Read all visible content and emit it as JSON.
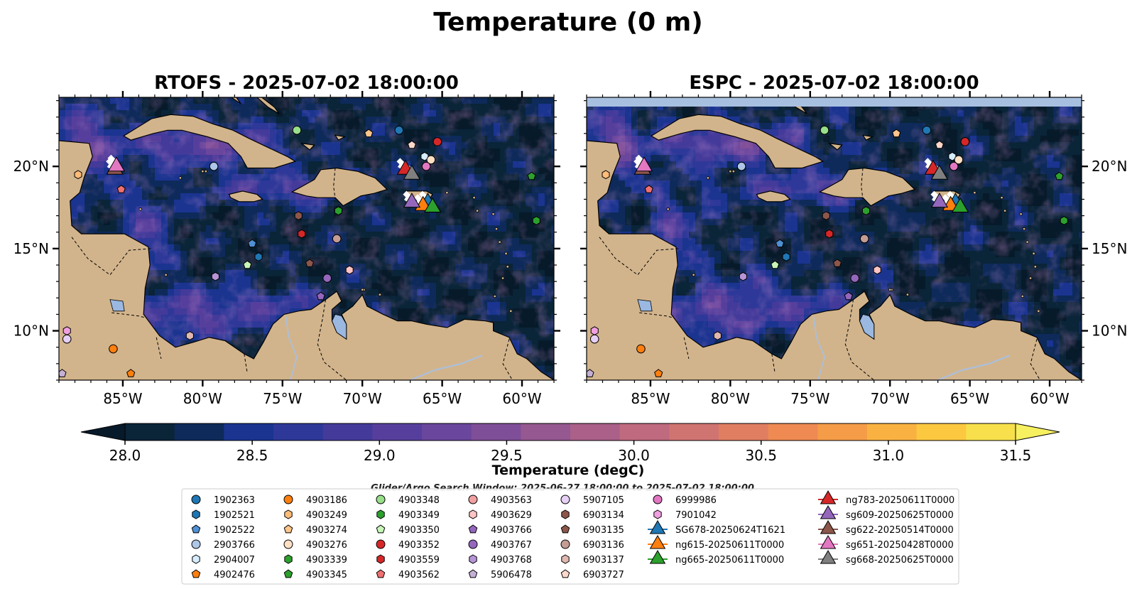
{
  "figure": {
    "suptitle": "Temperature (0 m)",
    "search_window": "Glider/Argo Search Window: 2025-06-27 18:00:00 to 2025-07-02 18:00:00"
  },
  "chart_data": [
    {
      "type": "heatmap",
      "title": "RTOFS - 2025-07-02 18:00:00",
      "xlim": [
        -89,
        -58
      ],
      "ylim": [
        7,
        24.2
      ],
      "xticks": [
        -85,
        -80,
        -75,
        -70,
        -65,
        -60
      ],
      "xtick_labels": [
        "85°W",
        "80°W",
        "75°W",
        "70°W",
        "65°W",
        "60°W"
      ],
      "yticks": [
        10,
        15,
        20
      ],
      "ytick_labels": [
        "10°N",
        "15°N",
        "20°N"
      ]
    },
    {
      "type": "heatmap",
      "title": "ESPC - 2025-07-02 18:00:00",
      "xlim": [
        -89,
        -58
      ],
      "ylim": [
        7,
        24.2
      ],
      "xticks": [
        -85,
        -80,
        -75,
        -70,
        -65,
        -60
      ],
      "xtick_labels": [
        "85°W",
        "80°W",
        "75°W",
        "70°W",
        "65°W",
        "60°W"
      ],
      "yticks": [
        10,
        15,
        20
      ],
      "ytick_labels": [
        "10°N",
        "15°N",
        "20°N"
      ]
    }
  ],
  "colorbar": {
    "label": "Temperature (degC)",
    "min": 28.0,
    "max": 31.5,
    "ticks": [
      28.0,
      28.5,
      29.0,
      29.5,
      30.0,
      30.5,
      31.0,
      31.5
    ],
    "tick_labels": [
      "28.0",
      "28.5",
      "29.0",
      "29.5",
      "30.0",
      "30.5",
      "31.0",
      "31.5"
    ],
    "colors": [
      "#0a2438",
      "#0e2a5a",
      "#1a3490",
      "#2e3898",
      "#433a9a",
      "#563f9c",
      "#6a469c",
      "#7f4e98",
      "#955890",
      "#aa6088",
      "#bf6a7e",
      "#d07472",
      "#e07e62",
      "#ee8a52",
      "#f59c48",
      "#f9b242",
      "#fbc840",
      "#f7e04c"
    ],
    "under_color": "#071a2a",
    "over_color": "#f7f060"
  },
  "colors": {
    "land": "#d2b48c",
    "ocean_mask": "#a8c0e0",
    "lakes": "#9ab8e0"
  },
  "argo_floats": [
    {
      "id": "1902363",
      "lon": -67.7,
      "lat": 22.2,
      "color": "#1f77b4",
      "marker": "circle"
    },
    {
      "id": "1902521",
      "lon": -76.5,
      "lat": 14.5,
      "color": "#1f77b4",
      "marker": "hexagon"
    },
    {
      "id": "1902522",
      "lon": -76.9,
      "lat": 15.3,
      "color": "#4f8fd4",
      "marker": "pentagon"
    },
    {
      "id": "2903766",
      "lon": -79.3,
      "lat": 20.0,
      "color": "#aec7e8",
      "marker": "circle"
    },
    {
      "id": "2904007",
      "lon": -66.1,
      "lat": 20.6,
      "color": "#d6ecff",
      "marker": "hexagon"
    },
    {
      "id": "4902476",
      "lon": -84.5,
      "lat": 7.4,
      "color": "#ff7f0e",
      "marker": "pentagon"
    },
    {
      "id": "4903186",
      "lon": -85.6,
      "lat": 8.9,
      "color": "#ff7f0e",
      "marker": "circle"
    },
    {
      "id": "4903249",
      "lon": -87.8,
      "lat": 19.5,
      "color": "#ffbb78",
      "marker": "hexagon"
    },
    {
      "id": "4903274",
      "lon": -69.6,
      "lat": 22.0,
      "color": "#ffc58a",
      "marker": "pentagon"
    },
    {
      "id": "4903276",
      "lon": -65.7,
      "lat": 20.4,
      "color": "#ffe0c4",
      "marker": "circle"
    },
    {
      "id": "4903339",
      "lon": -71.5,
      "lat": 17.3,
      "color": "#2ca02c",
      "marker": "hexagon"
    },
    {
      "id": "4903345",
      "lon": -59.4,
      "lat": 19.4,
      "color": "#2ca02c",
      "marker": "pentagon"
    },
    {
      "id": "4903348",
      "lon": -74.1,
      "lat": 22.2,
      "color": "#98df8a",
      "marker": "circle"
    },
    {
      "id": "4903349",
      "lon": -59.1,
      "lat": 16.7,
      "color": "#2ca02c",
      "marker": "hexagon"
    },
    {
      "id": "4903350",
      "lon": -77.2,
      "lat": 14.0,
      "color": "#c8f5b8",
      "marker": "pentagon"
    },
    {
      "id": "4903352",
      "lon": -65.3,
      "lat": 21.5,
      "color": "#d62728",
      "marker": "circle"
    },
    {
      "id": "4903559",
      "lon": -73.8,
      "lat": 15.9,
      "color": "#d62728",
      "marker": "hexagon"
    },
    {
      "id": "4903562",
      "lon": -85.1,
      "lat": 18.6,
      "color": "#f07070",
      "marker": "pentagon"
    },
    {
      "id": "4903563",
      "lon": -71.6,
      "lat": 15.6,
      "color": "#f0a0a0",
      "marker": "circle"
    },
    {
      "id": "4903629",
      "lon": -70.8,
      "lat": 13.7,
      "color": "#ffc4c4",
      "marker": "hexagon"
    },
    {
      "id": "4903766",
      "lon": -72.6,
      "lat": 12.1,
      "color": "#9467bd",
      "marker": "pentagon"
    },
    {
      "id": "4903767",
      "lon": -72.2,
      "lat": 13.2,
      "color": "#9467bd",
      "marker": "circle"
    },
    {
      "id": "4903768",
      "lon": -79.2,
      "lat": 13.3,
      "color": "#b695d6",
      "marker": "hexagon"
    },
    {
      "id": "5906478",
      "lon": -88.8,
      "lat": 7.4,
      "color": "#c5b0d5",
      "marker": "pentagon"
    },
    {
      "id": "5907105",
      "lon": -88.5,
      "lat": 9.5,
      "color": "#e6d0f5",
      "marker": "circle"
    },
    {
      "id": "6903134",
      "lon": -74.0,
      "lat": 17.0,
      "color": "#8c564b",
      "marker": "hexagon"
    },
    {
      "id": "6903135",
      "lon": -73.3,
      "lat": 14.1,
      "color": "#8c564b",
      "marker": "pentagon"
    },
    {
      "id": "6903136",
      "lon": -71.6,
      "lat": 15.6,
      "color": "#c49c94",
      "marker": "circle"
    },
    {
      "id": "6903137",
      "lon": -80.8,
      "lat": 9.7,
      "color": "#e0b8b0",
      "marker": "hexagon"
    },
    {
      "id": "6903727",
      "lon": -66.9,
      "lat": 21.3,
      "color": "#ffd8cc",
      "marker": "pentagon"
    },
    {
      "id": "6999986",
      "lon": -66.0,
      "lat": 20.0,
      "color": "#e377c2",
      "marker": "circle"
    },
    {
      "id": "7901042",
      "lon": -88.5,
      "lat": 10.0,
      "color": "#f0a0e0",
      "marker": "hexagon"
    }
  ],
  "gliders": [
    {
      "id": "SG678-20250624T1621",
      "lon": -65.9,
      "lat": 17.8,
      "color": "#1f77b4"
    },
    {
      "id": "ng615-20250611T0000",
      "lon": -66.2,
      "lat": 17.6,
      "color": "#ff7f0e"
    },
    {
      "id": "ng665-20250611T0000",
      "lon": -65.6,
      "lat": 17.5,
      "color": "#2ca02c"
    },
    {
      "id": "ng783-20250611T0000",
      "lon": -67.3,
      "lat": 19.8,
      "color": "#d62728"
    },
    {
      "id": "sg609-20250625T0000",
      "lon": -66.9,
      "lat": 17.8,
      "color": "#9467bd"
    },
    {
      "id": "sg622-20250514T0000",
      "lon": -85.5,
      "lat": 19.8,
      "color": "#8c564b"
    },
    {
      "id": "sg651-20250428T0000",
      "lon": -85.4,
      "lat": 20.0,
      "color": "#e377c2"
    },
    {
      "id": "sg668-20250625T0000",
      "lon": -66.9,
      "lat": 19.5,
      "color": "#7f7f7f"
    }
  ]
}
